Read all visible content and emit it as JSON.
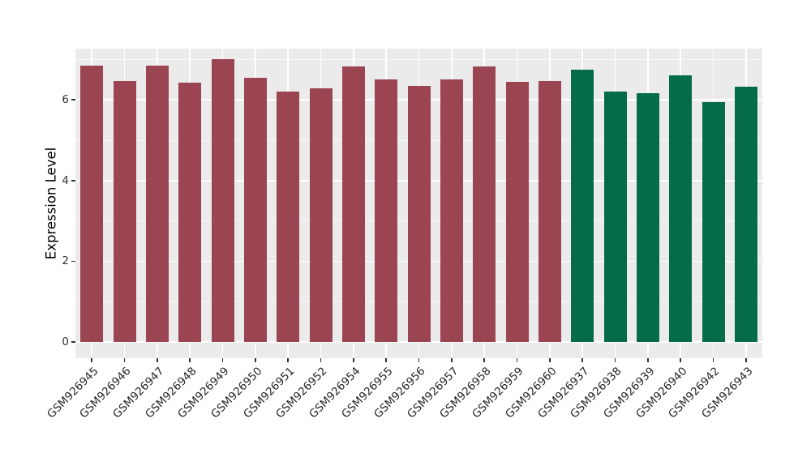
{
  "chart_data": {
    "type": "bar",
    "title": "",
    "xlabel": "",
    "ylabel": "Expression Level",
    "categories": [
      "GSM926945",
      "GSM926946",
      "GSM926947",
      "GSM926948",
      "GSM926949",
      "GSM926950",
      "GSM926951",
      "GSM926952",
      "GSM926954",
      "GSM926955",
      "GSM926956",
      "GSM926957",
      "GSM926958",
      "GSM926959",
      "GSM926960",
      "GSM926937",
      "GSM926938",
      "GSM926939",
      "GSM926940",
      "GSM926942",
      "GSM926943"
    ],
    "values": [
      6.85,
      6.47,
      6.85,
      6.42,
      7.01,
      6.55,
      6.2,
      6.28,
      6.82,
      6.51,
      6.34,
      6.5,
      6.82,
      6.44,
      6.46,
      6.74,
      6.2,
      6.17,
      6.6,
      5.94,
      6.32
    ],
    "bar_colors": [
      "#9B4452",
      "#9B4452",
      "#9B4452",
      "#9B4452",
      "#9B4452",
      "#9B4452",
      "#9B4452",
      "#9B4452",
      "#9B4452",
      "#9B4452",
      "#9B4452",
      "#9B4452",
      "#9B4452",
      "#9B4452",
      "#9B4452",
      "#046B4B",
      "#046B4B",
      "#046B4B",
      "#046B4B",
      "#046B4B",
      "#046B4B"
    ],
    "yticks": [
      0,
      2,
      4,
      6
    ],
    "minor_yticks": [
      1,
      3,
      5,
      7
    ],
    "ylim": [
      0,
      7.3
    ],
    "grid": true,
    "legend": "none",
    "x_label_rotation_deg": 45,
    "colors": {
      "group_left": "#9B4452",
      "group_right": "#046B4B",
      "panel_background": "#EBEBEB",
      "gridline": "#FFFFFF",
      "axis_text": "#333333"
    }
  }
}
